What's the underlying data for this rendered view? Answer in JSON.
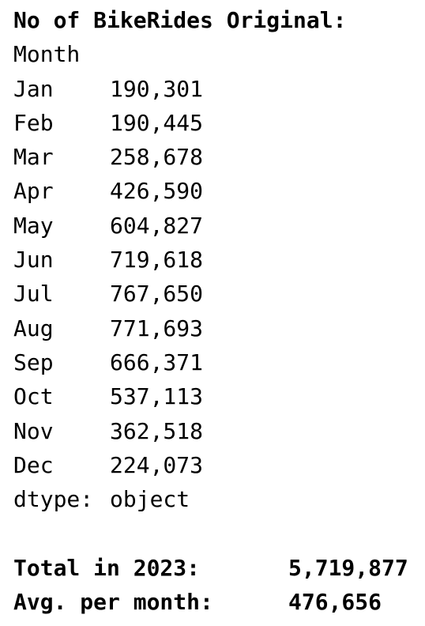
{
  "title": "No of BikeRides Original:",
  "index_name": "Month",
  "rows": [
    {
      "month": "Jan",
      "value": "190,301"
    },
    {
      "month": "Feb",
      "value": "190,445"
    },
    {
      "month": "Mar",
      "value": "258,678"
    },
    {
      "month": "Apr",
      "value": "426,590"
    },
    {
      "month": "May",
      "value": "604,827"
    },
    {
      "month": "Jun",
      "value": "719,618"
    },
    {
      "month": "Jul",
      "value": "767,650"
    },
    {
      "month": "Aug",
      "value": "771,693"
    },
    {
      "month": "Sep",
      "value": "666,371"
    },
    {
      "month": "Oct",
      "value": "537,113"
    },
    {
      "month": "Nov",
      "value": "362,518"
    },
    {
      "month": "Dec",
      "value": "224,073"
    }
  ],
  "dtype": {
    "label": "dtype:",
    "value": "object"
  },
  "summary": {
    "total_label": "Total in 2023:",
    "total_value": "5,719,877",
    "avg_label": "Avg. per month:",
    "avg_value": "476,656"
  }
}
